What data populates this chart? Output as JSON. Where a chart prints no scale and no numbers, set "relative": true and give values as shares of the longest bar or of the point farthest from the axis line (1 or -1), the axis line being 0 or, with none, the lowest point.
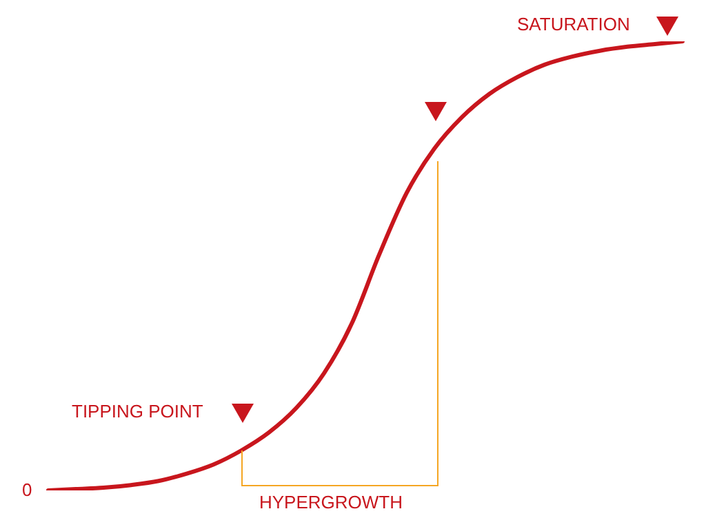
{
  "chart_data": {
    "type": "line",
    "relative": true,
    "categories": [
      null,
      null,
      null,
      null,
      null,
      null,
      null,
      null,
      null,
      null,
      null,
      null,
      null,
      null,
      null,
      null,
      null,
      null,
      null,
      null,
      null,
      null,
      null,
      null
    ],
    "series": [
      {
        "color": "#c8161d",
        "values": [
          0,
          0.003,
          0.006,
          0.012,
          0.021,
          0.037,
          0.058,
          0.089,
          0.129,
          0.184,
          0.261,
          0.371,
          0.525,
          0.663,
          0.761,
          0.831,
          0.883,
          0.92,
          0.948,
          0.966,
          0.979,
          0.988,
          0.994,
          1
        ]
      }
    ],
    "annotations": [
      "TIPPING POINT",
      "SATURATION",
      "HYPERGROWTH",
      "0"
    ],
    "legend": false,
    "marker": "none",
    "line_style": "solid"
  }
}
